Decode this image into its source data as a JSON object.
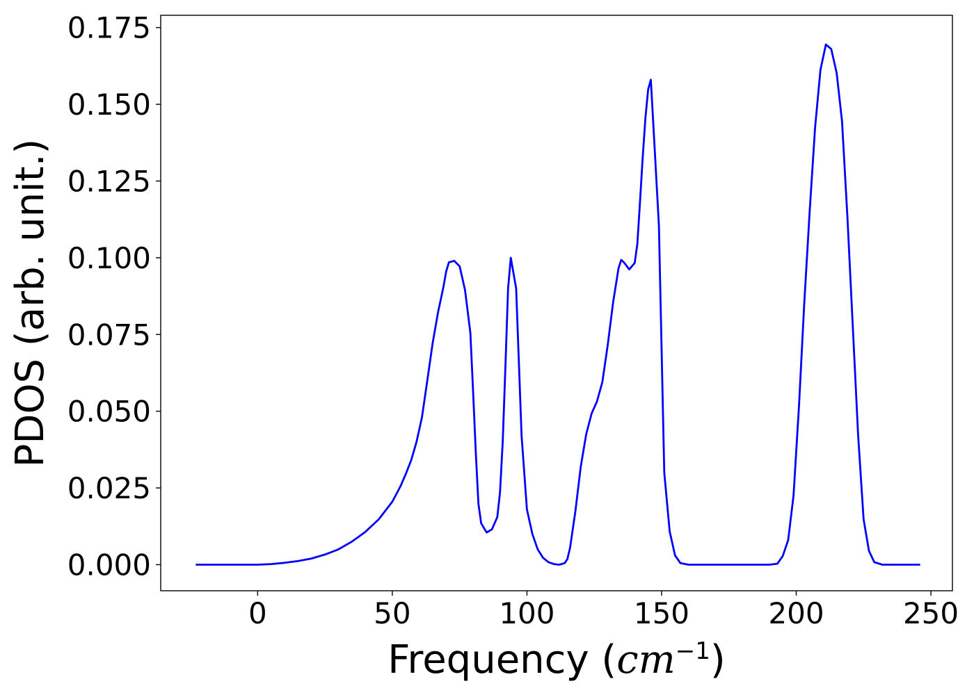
{
  "chart_data": {
    "type": "line",
    "title": "",
    "xlabel": "Frequency (cm⁻¹)",
    "xlabel_parts": {
      "prefix": "Frequency (",
      "var": "cm",
      "sup": "−1",
      "suffix": ")"
    },
    "ylabel": "PDOS (arb. unit.)",
    "xlim": [
      -36,
      258
    ],
    "ylim": [
      -0.0085,
      0.179
    ],
    "xticks": [
      0,
      50,
      100,
      150,
      200,
      250
    ],
    "xtick_labels": [
      "0",
      "50",
      "100",
      "150",
      "200",
      "250"
    ],
    "yticks": [
      0.0,
      0.025,
      0.05,
      0.075,
      0.1,
      0.125,
      0.15,
      0.175
    ],
    "ytick_labels": [
      "0.000",
      "0.025",
      "0.050",
      "0.075",
      "0.100",
      "0.125",
      "0.150",
      "0.175"
    ],
    "grid": false,
    "legend": false,
    "series": [
      {
        "color": "#0000ff",
        "x": [
          -23,
          0,
          5,
          10,
          15,
          20,
          25,
          30,
          35,
          40,
          45,
          50,
          53,
          55,
          57,
          59,
          61,
          63,
          65,
          67,
          69,
          70,
          71,
          73,
          75,
          77,
          79,
          80,
          81,
          82,
          83,
          85,
          87,
          89,
          90,
          91,
          92,
          93,
          94,
          96,
          98,
          100,
          102,
          104,
          106,
          108,
          110,
          112,
          114,
          115,
          116,
          118,
          120,
          122,
          124,
          126,
          128,
          130,
          132,
          134,
          135,
          136,
          138,
          140,
          141,
          142,
          143,
          144,
          145,
          146,
          147,
          149,
          151,
          153,
          155,
          157,
          160,
          170,
          180,
          190,
          193,
          195,
          197,
          199,
          201,
          203,
          205,
          207,
          209,
          211,
          213,
          215,
          217,
          219,
          221,
          223,
          225,
          227,
          229,
          232,
          240,
          246
        ],
        "y": [
          0.0,
          0.0,
          0.0002,
          0.0006,
          0.0012,
          0.002,
          0.0033,
          0.005,
          0.0075,
          0.0107,
          0.0148,
          0.0205,
          0.0255,
          0.0295,
          0.034,
          0.04,
          0.048,
          0.06,
          0.0722,
          0.0823,
          0.0905,
          0.0955,
          0.0985,
          0.099,
          0.0972,
          0.0895,
          0.0755,
          0.0565,
          0.0365,
          0.0198,
          0.0135,
          0.0105,
          0.0115,
          0.0155,
          0.0235,
          0.04,
          0.0647,
          0.09,
          0.1,
          0.09,
          0.042,
          0.018,
          0.01,
          0.005,
          0.0022,
          0.0008,
          0.0002,
          0.0,
          0.0005,
          0.0018,
          0.0055,
          0.0175,
          0.032,
          0.0425,
          0.0492,
          0.0532,
          0.0595,
          0.0715,
          0.0855,
          0.0965,
          0.0993,
          0.0985,
          0.0962,
          0.0983,
          0.1045,
          0.1185,
          0.133,
          0.1455,
          0.1548,
          0.158,
          0.1425,
          0.1105,
          0.03,
          0.0108,
          0.003,
          0.0005,
          0.0,
          0.0,
          0.0,
          0.0,
          0.0003,
          0.0028,
          0.008,
          0.0225,
          0.0515,
          0.0855,
          0.1155,
          0.1425,
          0.1612,
          0.1695,
          0.168,
          0.1602,
          0.1445,
          0.1135,
          0.0775,
          0.042,
          0.0148,
          0.0045,
          0.0008,
          0.0,
          0.0,
          0.0
        ]
      }
    ]
  }
}
